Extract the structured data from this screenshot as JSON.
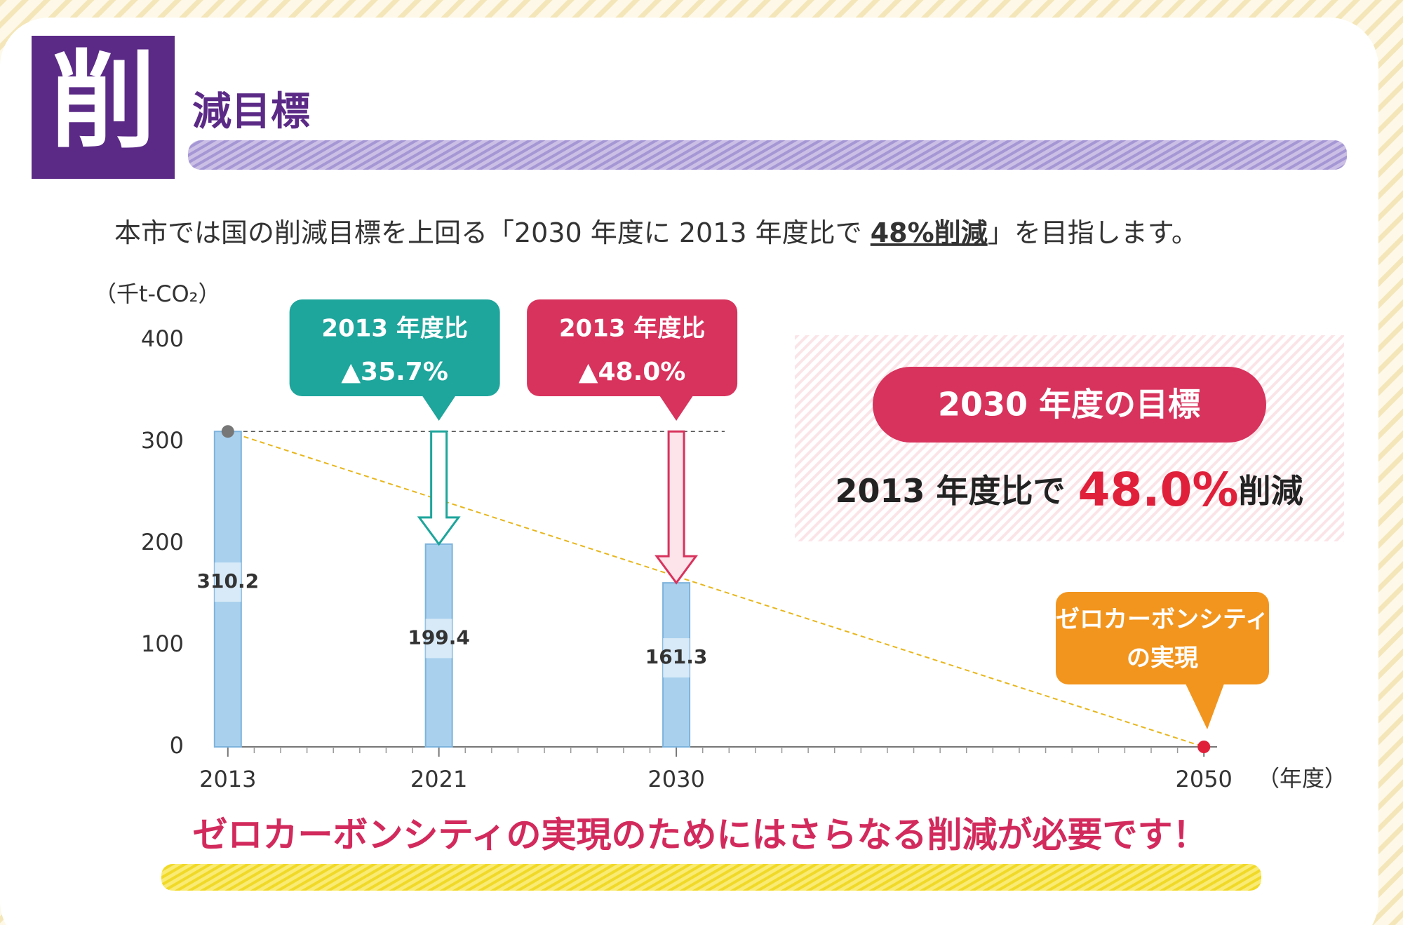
{
  "header": {
    "icon": "削",
    "title": "減目標"
  },
  "intro": {
    "before": "本市では国の削減目標を上回る「2030 年度に 2013 年度比で ",
    "emphasis": "48%削減",
    "after": "」を目指します。"
  },
  "chart_data": {
    "type": "bar",
    "y_label": "（千t-CO₂）",
    "x_label": "（年度）",
    "x": [
      2013,
      2021,
      2030,
      2050
    ],
    "values": [
      310.2,
      199.4,
      161.3,
      0
    ],
    "value_labels": [
      "310.2",
      "199.4",
      "161.3",
      null
    ],
    "color": "#a9d1ee",
    "xlim": [
      2012.5,
      2050.5
    ],
    "xticks": [
      2013,
      2021,
      2030,
      2050
    ],
    "ylim": [
      0,
      400
    ],
    "yticks": [
      0,
      100,
      200,
      300,
      400
    ],
    "annotations": [
      {
        "title": "2013 年度比",
        "text": "▲35.7%",
        "color": "#1ea59c"
      },
      {
        "title": "2013 年度比",
        "text": "▲48.0%",
        "color": "#d8335d"
      }
    ]
  },
  "goal": {
    "title": "2030 年度の目標",
    "before": "2013 年度比で",
    "value": "48.0%",
    "after": "削減"
  },
  "zero_carbon": {
    "line1": "ゼロカーボンシティ",
    "line2": "の実現"
  },
  "footer": "ゼロカーボンシティの実現のためにはさらなる削減が必要です！"
}
